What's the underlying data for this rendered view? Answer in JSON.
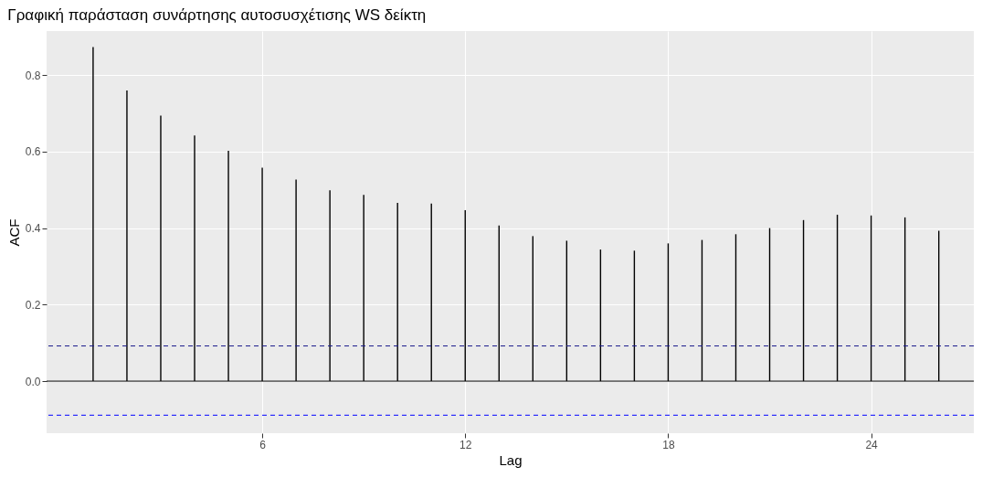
{
  "chart_data": {
    "type": "bar",
    "title": "Γραφική παράσταση συνάρτησης αυτοσυσχέτισης WS δείκτη",
    "xlabel": "Lag",
    "ylabel": "ACF",
    "x": [
      1,
      2,
      3,
      4,
      5,
      6,
      7,
      8,
      9,
      10,
      11,
      12,
      13,
      14,
      15,
      16,
      17,
      18,
      19,
      20,
      21,
      22,
      23,
      24,
      25,
      26
    ],
    "series": [
      {
        "color": "#000000",
        "values": [
          0.873,
          0.76,
          0.694,
          0.642,
          0.602,
          0.558,
          0.527,
          0.499,
          0.487,
          0.466,
          0.464,
          0.447,
          0.407,
          0.379,
          0.367,
          0.344,
          0.341,
          0.36,
          0.369,
          0.384,
          0.4,
          0.421,
          0.435,
          0.433,
          0.428,
          0.393
        ]
      }
    ],
    "xlim": [
      -0.24,
      26.9
    ],
    "xticks": [
      6,
      12,
      18,
      24
    ],
    "ylim": [
      -0.136,
      0.915
    ],
    "yticks": [
      {
        "value": 0,
        "label": "0.0"
      },
      0.2,
      0.4,
      0.6,
      0.8
    ],
    "ref_lines": [
      {
        "axis": "y",
        "value": 0,
        "color": "#000000",
        "line_style": "solid"
      },
      {
        "axis": "y",
        "value": 0.092,
        "color": "#1a1a8c",
        "line_style": "dashed"
      },
      {
        "axis": "y",
        "value": -0.089,
        "color": "#0000ff",
        "line_style": "dashed"
      }
    ],
    "grid": true
  }
}
